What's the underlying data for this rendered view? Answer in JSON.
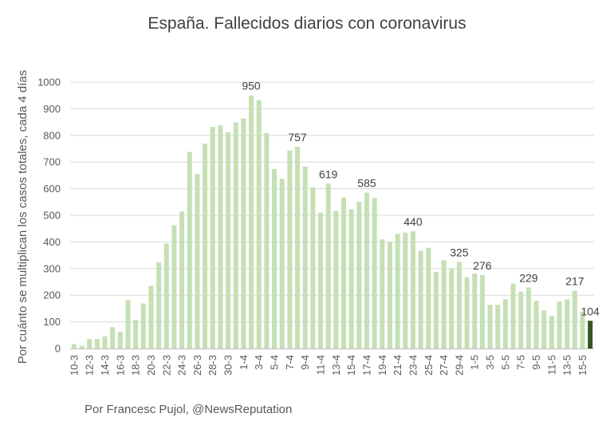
{
  "chart_data": {
    "type": "bar",
    "title": "España. Fallecidos diarios con coronavirus",
    "ylabel": "Por cuánto se multiplican los casos totales, cada 4 días",
    "xlabel": "",
    "ylim": [
      0,
      1000
    ],
    "yticks": [
      0,
      100,
      200,
      300,
      400,
      500,
      600,
      700,
      800,
      900,
      1000
    ],
    "grid": true,
    "legend": "none",
    "bar_color": "#c5e0b4",
    "highlight_color": "#375623",
    "categories": [
      "10-3",
      "11-3",
      "12-3",
      "13-3",
      "14-3",
      "15-3",
      "16-3",
      "17-3",
      "18-3",
      "19-3",
      "20-3",
      "21-3",
      "22-3",
      "23-3",
      "24-3",
      "25-3",
      "26-3",
      "27-3",
      "28-3",
      "29-3",
      "30-3",
      "31-3",
      "1-4",
      "2-4",
      "3-4",
      "4-4",
      "5-4",
      "6-4",
      "7-4",
      "8-4",
      "9-4",
      "10-4",
      "11-4",
      "12-4",
      "13-4",
      "14-4",
      "15-4",
      "16-4",
      "17-4",
      "18-4",
      "19-4",
      "20-4",
      "21-4",
      "22-4",
      "23-4",
      "24-4",
      "25-4",
      "26-4",
      "27-4",
      "28-4",
      "29-4",
      "30-4",
      "1-5",
      "2-5",
      "3-5",
      "4-5",
      "5-5",
      "6-5",
      "7-5",
      "8-5",
      "9-5",
      "10-5",
      "11-5",
      "12-5",
      "13-5",
      "14-5",
      "15-5",
      "16-5"
    ],
    "tick_labels": [
      "10-3",
      "12-3",
      "14-3",
      "16-3",
      "18-3",
      "20-3",
      "22-3",
      "24-3",
      "26-3",
      "28-3",
      "30-3",
      "1-4",
      "3-4",
      "5-4",
      "7-4",
      "9-4",
      "11-4",
      "13-4",
      "15-4",
      "17-4",
      "19-4",
      "21-4",
      "23-4",
      "25-4",
      "27-4",
      "29-4",
      "1-5",
      "3-5",
      "5-5",
      "7-5",
      "9-5",
      "11-5",
      "13-5",
      "15-5"
    ],
    "values": [
      17,
      10,
      35,
      36,
      46,
      80,
      63,
      182,
      107,
      169,
      235,
      324,
      394,
      462,
      514,
      738,
      655,
      769,
      832,
      838,
      812,
      849,
      864,
      950,
      932,
      809,
      674,
      637,
      743,
      757,
      683,
      605,
      510,
      619,
      517,
      567,
      523,
      551,
      585,
      565,
      410,
      399,
      430,
      435,
      440,
      367,
      378,
      288,
      331,
      301,
      325,
      268,
      281,
      276,
      164,
      164,
      185,
      244,
      213,
      229,
      179,
      143,
      123,
      176,
      184,
      217,
      138,
      104
    ],
    "highlight_index": 67,
    "data_labels": [
      {
        "index": 23,
        "text": "950"
      },
      {
        "index": 29,
        "text": "757"
      },
      {
        "index": 33,
        "text": "619"
      },
      {
        "index": 38,
        "text": "585"
      },
      {
        "index": 44,
        "text": "440"
      },
      {
        "index": 50,
        "text": "325"
      },
      {
        "index": 53,
        "text": "276"
      },
      {
        "index": 59,
        "text": "229"
      },
      {
        "index": 65,
        "text": "217"
      },
      {
        "index": 67,
        "text": "104"
      }
    ]
  },
  "footer": {
    "credit": "Por Francesc Pujol, @NewsReputation"
  }
}
